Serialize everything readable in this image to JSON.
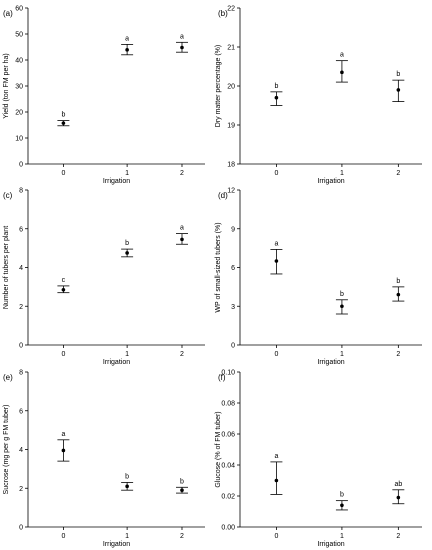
{
  "chart_data": [
    {
      "panel": "(a)",
      "type": "scatter",
      "xlabel": "Irrigation",
      "ylabel": "Yield (ton FM per ha)",
      "categories": [
        "0",
        "1",
        "2"
      ],
      "ylim": [
        0,
        60
      ],
      "yticks": [
        "0",
        "10",
        "20",
        "30",
        "40",
        "50",
        "60"
      ],
      "points": [
        {
          "x": "0",
          "mean": 15.7,
          "lower": 14.7,
          "upper": 16.7,
          "letter": "b"
        },
        {
          "x": "1",
          "mean": 43.9,
          "lower": 42.0,
          "upper": 46.0,
          "letter": "a"
        },
        {
          "x": "2",
          "mean": 44.8,
          "lower": 43.0,
          "upper": 46.8,
          "letter": "a"
        }
      ]
    },
    {
      "panel": "(b)",
      "type": "scatter",
      "xlabel": "Irrigation",
      "ylabel": "Dry matter percentage (%)",
      "categories": [
        "0",
        "1",
        "2"
      ],
      "ylim": [
        18,
        22
      ],
      "yticks": [
        "18",
        "19",
        "20",
        "21",
        "22"
      ],
      "points": [
        {
          "x": "0",
          "mean": 19.7,
          "lower": 19.5,
          "upper": 19.85,
          "letter": "b"
        },
        {
          "x": "1",
          "mean": 20.35,
          "lower": 20.1,
          "upper": 20.65,
          "letter": "a"
        },
        {
          "x": "2",
          "mean": 19.9,
          "lower": 19.6,
          "upper": 20.15,
          "letter": "b"
        }
      ]
    },
    {
      "panel": "(c)",
      "type": "scatter",
      "xlabel": "Irrigation",
      "ylabel": "Number of tubers per plant",
      "categories": [
        "0",
        "1",
        "2"
      ],
      "ylim": [
        0,
        8
      ],
      "yticks": [
        "0",
        "2",
        "4",
        "6",
        "8"
      ],
      "points": [
        {
          "x": "0",
          "mean": 2.85,
          "lower": 2.7,
          "upper": 3.05,
          "letter": "c"
        },
        {
          "x": "1",
          "mean": 4.75,
          "lower": 4.55,
          "upper": 4.95,
          "letter": "b"
        },
        {
          "x": "2",
          "mean": 5.45,
          "lower": 5.2,
          "upper": 5.75,
          "letter": "a"
        }
      ]
    },
    {
      "panel": "(d)",
      "type": "scatter",
      "xlabel": "Irrigation",
      "ylabel": "WP of small-sized tubers (%)",
      "categories": [
        "0",
        "1",
        "2"
      ],
      "ylim": [
        0,
        12
      ],
      "yticks": [
        "0",
        "3",
        "6",
        "9",
        "12"
      ],
      "points": [
        {
          "x": "0",
          "mean": 6.5,
          "lower": 5.5,
          "upper": 7.4,
          "letter": "a"
        },
        {
          "x": "1",
          "mean": 3.0,
          "lower": 2.4,
          "upper": 3.5,
          "letter": "b"
        },
        {
          "x": "2",
          "mean": 3.9,
          "lower": 3.4,
          "upper": 4.5,
          "letter": "b"
        }
      ]
    },
    {
      "panel": "(e)",
      "type": "scatter",
      "xlabel": "Irrigation",
      "ylabel": "Sucrose (mg per g FM tuber)",
      "categories": [
        "0",
        "1",
        "2"
      ],
      "ylim": [
        0,
        8
      ],
      "yticks": [
        "0",
        "2",
        "4",
        "6",
        "8"
      ],
      "points": [
        {
          "x": "0",
          "mean": 3.95,
          "lower": 3.4,
          "upper": 4.5,
          "letter": "a"
        },
        {
          "x": "1",
          "mean": 2.1,
          "lower": 1.9,
          "upper": 2.3,
          "letter": "b"
        },
        {
          "x": "2",
          "mean": 1.9,
          "lower": 1.75,
          "upper": 2.05,
          "letter": "b"
        }
      ]
    },
    {
      "panel": "(f)",
      "type": "scatter",
      "xlabel": "Irrigation",
      "ylabel": "Glucose (% of FM tuber)",
      "categories": [
        "0",
        "1",
        "2"
      ],
      "ylim": [
        0,
        0.1
      ],
      "yticks": [
        "0.00",
        "0.02",
        "0.04",
        "0.06",
        "0.08",
        "0.10"
      ],
      "points": [
        {
          "x": "0",
          "mean": 0.03,
          "lower": 0.021,
          "upper": 0.042,
          "letter": "a"
        },
        {
          "x": "1",
          "mean": 0.014,
          "lower": 0.011,
          "upper": 0.017,
          "letter": "b"
        },
        {
          "x": "2",
          "mean": 0.019,
          "lower": 0.015,
          "upper": 0.024,
          "letter": "ab"
        }
      ]
    }
  ]
}
